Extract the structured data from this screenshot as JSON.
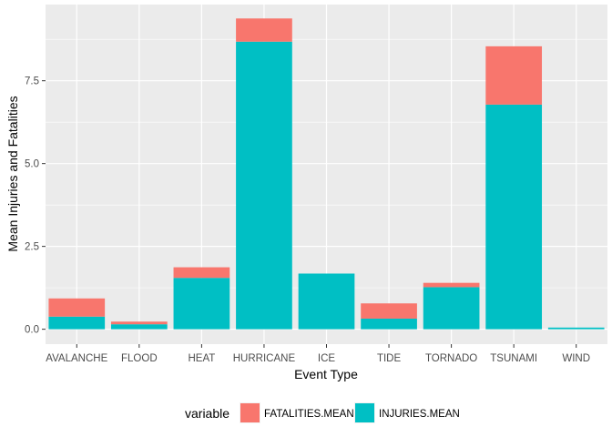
{
  "chart_data": {
    "type": "bar",
    "stacked": true,
    "xlabel": "Event Type",
    "ylabel": "Mean Injuries and Fatalities",
    "categories": [
      "AVALANCHE",
      "FLOOD",
      "HEAT",
      "HURRICANE",
      "ICE",
      "TIDE",
      "TORNADO",
      "TSUNAMI",
      "WIND"
    ],
    "series": [
      {
        "name": "INJURIES.MEAN",
        "color": "#00BFC4",
        "values": [
          0.38,
          0.15,
          1.55,
          8.68,
          1.68,
          0.32,
          1.27,
          6.78,
          0.05
        ]
      },
      {
        "name": "FATALITIES.MEAN",
        "color": "#F8766D",
        "values": [
          0.55,
          0.08,
          0.32,
          0.7,
          0.0,
          0.46,
          0.13,
          1.76,
          0.0
        ]
      }
    ],
    "ylim": [
      -0.45,
      9.8
    ],
    "yticks": [
      0.0,
      2.5,
      5.0,
      7.5
    ],
    "ytick_labels": [
      "0.0",
      "2.5",
      "5.0",
      "7.5"
    ],
    "grid": true,
    "legend": {
      "title": "variable",
      "position": "bottom",
      "entries": [
        {
          "label": "FATALITIES.MEAN",
          "color": "#F8766D"
        },
        {
          "label": "INJURIES.MEAN",
          "color": "#00BFC4"
        }
      ]
    },
    "panel_background": "#EBEBEB",
    "grid_color": "#FFFFFF"
  }
}
